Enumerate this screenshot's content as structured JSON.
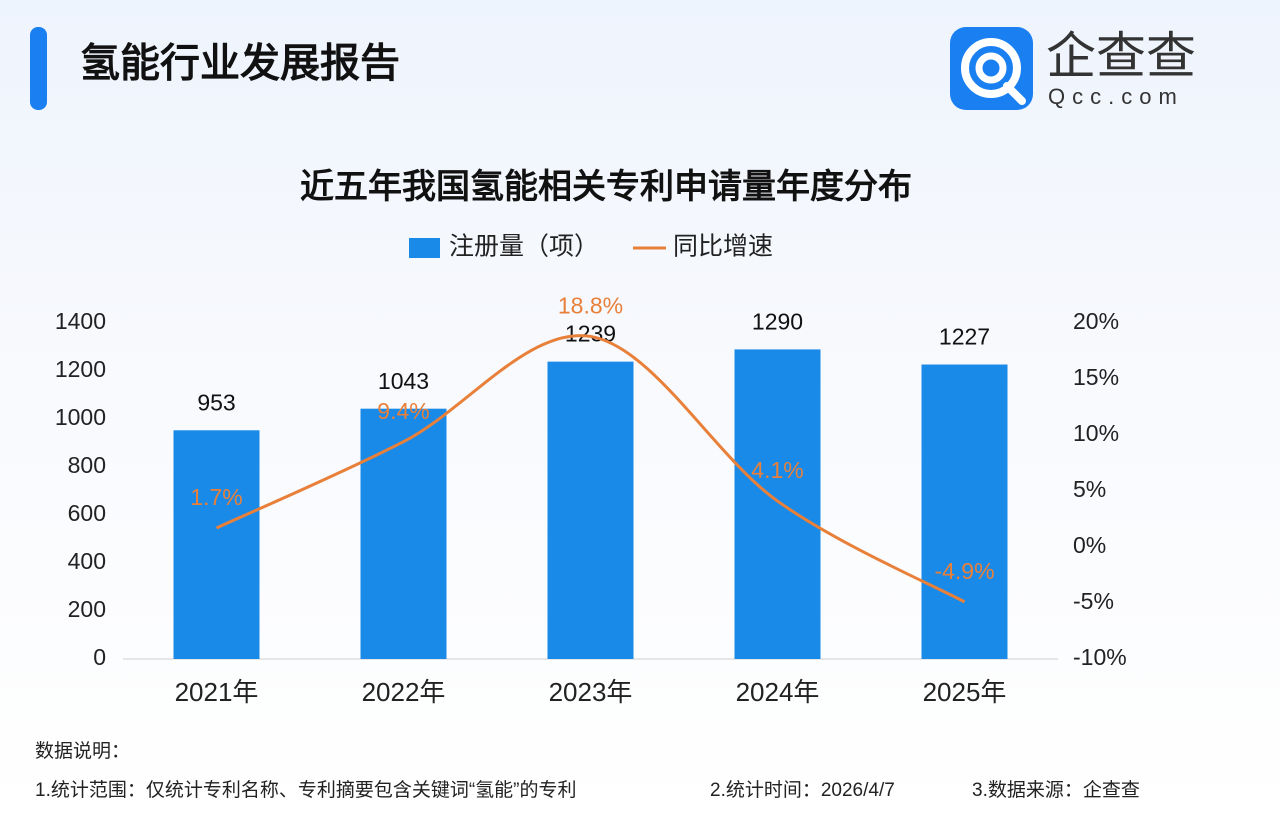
{
  "header": {
    "title": "氢能行业发展报告",
    "logo_name": "企查查",
    "logo_url": "Qcc.com"
  },
  "chart_data": {
    "type": "bar",
    "title": "近五年我国氢能相关专利申请量年度分布",
    "categories": [
      "2021年",
      "2022年",
      "2023年",
      "2024年",
      "2025年"
    ],
    "series": [
      {
        "name": "注册量（项）",
        "color": "#1a8ae8",
        "values": [
          953,
          1043,
          1239,
          1290,
          1227
        ]
      },
      {
        "name": "同比增速",
        "type": "line",
        "axis": "y2",
        "color": "#e8803a",
        "values": [
          1.7,
          9.4,
          18.8,
          4.1,
          -4.9
        ],
        "value_labels": [
          "1.7%",
          "9.4%",
          "18.8%",
          "4.1%",
          "-4.9%"
        ]
      }
    ],
    "ylim": [
      0,
      1400
    ],
    "yticks": [
      0,
      200,
      400,
      600,
      800,
      1000,
      1200,
      1400
    ],
    "y2lim": [
      -10,
      20
    ],
    "y2ticks": [
      {
        "value": -10,
        "label": "-10%"
      },
      {
        "value": -5,
        "label": "-5%"
      },
      {
        "value": 0,
        "label": "0%"
      },
      {
        "value": 5,
        "label": "5%"
      },
      {
        "value": 10,
        "label": "10%"
      },
      {
        "value": 15,
        "label": "15%"
      },
      {
        "value": 20,
        "label": "20%"
      }
    ],
    "legend": "top"
  },
  "notes": {
    "heading": "数据说明：",
    "items": [
      "1.统计范围：仅统计专利名称、专利摘要包含关键词“氢能”的专利",
      "2.统计时间：2026/4/7",
      "3.数据来源：企查查"
    ]
  }
}
